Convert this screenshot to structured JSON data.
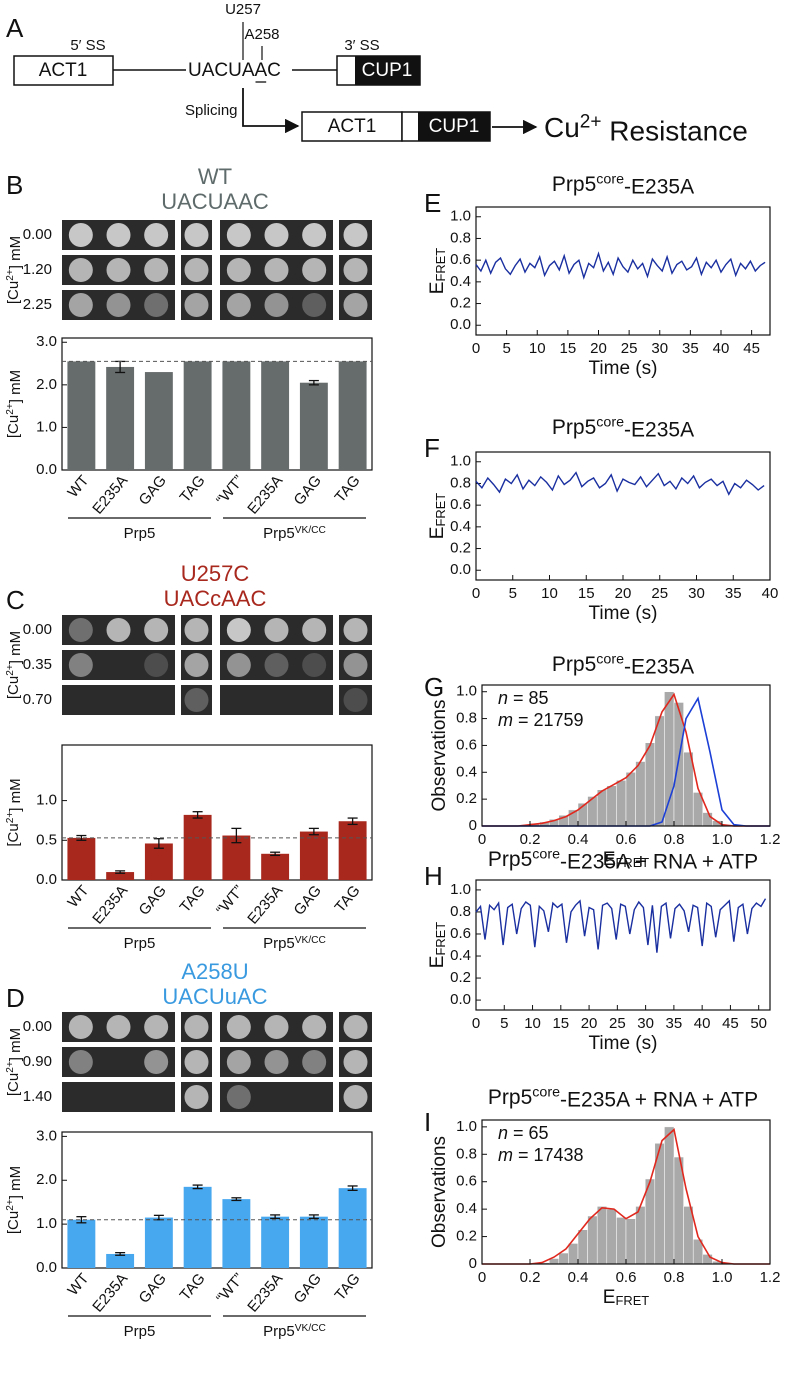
{
  "diagram": {
    "panel": "A",
    "exon1": "ACT1",
    "ss5": "5′ SS",
    "branch": "UACUAAC",
    "u257": "U257",
    "a258": "A258",
    "ss3": "3′ SS",
    "reporter": "CUP1",
    "splicing": "Splicing",
    "product1": "ACT1",
    "product2": "CUP1",
    "result": {
      "base": "Cu",
      "sup": "2+",
      "rest": " Resistance"
    }
  },
  "chart_data": [
    {
      "type": "bar",
      "panel": "B",
      "title": "WT",
      "subtitle": "UACUAAC",
      "title_color": "#5f6b6b",
      "color": "#666b6b",
      "concentrations": [
        "0.00",
        "1.20",
        "2.25"
      ],
      "photo_ylabel": {
        "base": "[Cu",
        "sup": "2+",
        "rest": "] mM"
      },
      "ylabel": {
        "base": "[Cu",
        "sup": "2+",
        "rest": "] mM"
      },
      "categories": [
        "WT",
        "E235A",
        "GAG",
        "TAG",
        "“WT”",
        "E235A",
        "GAG",
        "TAG"
      ],
      "values": [
        2.55,
        2.42,
        2.3,
        2.55,
        2.55,
        2.55,
        2.05,
        2.55
      ],
      "errors": [
        null,
        0.13,
        null,
        null,
        null,
        null,
        0.05,
        null
      ],
      "refline": 2.55,
      "ylim": [
        0,
        3.1
      ],
      "yticks": [
        {
          "value": 0,
          "label": "0.0"
        },
        {
          "value": 1,
          "label": "1.0"
        },
        {
          "value": 2,
          "label": "2.0"
        },
        {
          "value": 3,
          "label": "3.0"
        }
      ],
      "groups": [
        {
          "base": "Prp5"
        },
        {
          "base": "Prp5",
          "sup": "VK/CC"
        }
      ]
    },
    {
      "type": "bar",
      "panel": "C",
      "title": "U257C",
      "subtitle": "UACcAAC",
      "title_color": "#a8281e",
      "color": "#a8281e",
      "concentrations": [
        "0.00",
        "0.35",
        "0.70"
      ],
      "photo_ylabel": {
        "base": "[Cu",
        "sup": "2+",
        "rest": "] mM"
      },
      "ylabel": {
        "base": "[Cu",
        "sup": "2+",
        "rest": "] mM"
      },
      "categories": [
        "WT",
        "E235A",
        "GAG",
        "TAG",
        "“WT”",
        "E235A",
        "GAG",
        "TAG"
      ],
      "values": [
        0.53,
        0.1,
        0.46,
        0.82,
        0.56,
        0.33,
        0.61,
        0.74
      ],
      "errors": [
        0.03,
        0.015,
        0.06,
        0.04,
        0.09,
        0.02,
        0.04,
        0.04
      ],
      "refline": 0.53,
      "ylim": [
        0,
        1.7
      ],
      "yticks": [
        {
          "value": 0,
          "label": "0.0"
        },
        0.5,
        {
          "value": 1,
          "label": "1.0"
        }
      ],
      "groups": [
        {
          "base": "Prp5"
        },
        {
          "base": "Prp5",
          "sup": "VK/CC"
        }
      ]
    },
    {
      "type": "bar",
      "panel": "D",
      "title": "A258U",
      "subtitle": "UACUuAC",
      "title_color": "#3a9ae0",
      "color": "#47a7ef",
      "concentrations": [
        "0.00",
        "0.90",
        "1.40"
      ],
      "photo_ylabel": {
        "base": "[Cu",
        "sup": "2+",
        "rest": "] mM"
      },
      "ylabel": {
        "base": "[Cu",
        "sup": "2+",
        "rest": "] mM"
      },
      "categories": [
        "WT",
        "E235A",
        "GAG",
        "TAG",
        "“WT”",
        "E235A",
        "GAG",
        "TAG"
      ],
      "values": [
        1.1,
        0.32,
        1.15,
        1.85,
        1.57,
        1.17,
        1.17,
        1.82
      ],
      "errors": [
        0.07,
        0.03,
        0.05,
        0.04,
        0.03,
        0.04,
        0.04,
        0.05
      ],
      "refline": 1.1,
      "ylim": [
        0,
        3.1
      ],
      "yticks": [
        {
          "value": 0,
          "label": "0.0"
        },
        {
          "value": 1,
          "label": "1.0"
        },
        {
          "value": 2,
          "label": "2.0"
        },
        {
          "value": 3,
          "label": "3.0"
        }
      ],
      "groups": [
        {
          "base": "Prp5"
        },
        {
          "base": "Prp5",
          "sup": "VK/CC"
        }
      ]
    },
    {
      "type": "line",
      "panel": "E",
      "title": {
        "base": "Prp5",
        "sup": "core",
        "rest": "-E235A"
      },
      "xlabel": "Time (s)",
      "ylabel": {
        "base": "E",
        "sub": "FRET"
      },
      "color": "#1a2fa0",
      "xlim": [
        0,
        48
      ],
      "xticks": [
        0,
        5,
        10,
        15,
        20,
        25,
        30,
        35,
        40,
        45
      ],
      "ylim": [
        -0.09,
        1.09
      ],
      "yticks": [
        {
          "value": 0,
          "label": "0.0"
        },
        0.2,
        0.4,
        0.6,
        0.8,
        {
          "value": 1,
          "label": "1.0"
        }
      ],
      "x": [
        0,
        0.8,
        1.6,
        2.4,
        3.2,
        4,
        4.8,
        5.6,
        6.4,
        7.2,
        8,
        8.8,
        9.6,
        10.4,
        11.2,
        12,
        12.8,
        13.6,
        14.4,
        15.2,
        16,
        16.8,
        17.6,
        18.4,
        19.2,
        20,
        20.8,
        21.6,
        22.4,
        23.2,
        24,
        24.8,
        25.6,
        26.4,
        27.2,
        28,
        28.8,
        29.6,
        30.4,
        31.2,
        32,
        32.8,
        33.6,
        34.4,
        35.2,
        36,
        36.8,
        37.6,
        38.4,
        39.2,
        40,
        40.8,
        41.6,
        42.4,
        43.2,
        44,
        44.8,
        45.6,
        46.4,
        47.2
      ],
      "values": [
        0.56,
        0.5,
        0.6,
        0.48,
        0.58,
        0.62,
        0.52,
        0.47,
        0.55,
        0.61,
        0.49,
        0.57,
        0.53,
        0.63,
        0.46,
        0.55,
        0.59,
        0.51,
        0.64,
        0.48,
        0.56,
        0.6,
        0.44,
        0.57,
        0.53,
        0.66,
        0.5,
        0.58,
        0.47,
        0.62,
        0.54,
        0.49,
        0.6,
        0.52,
        0.57,
        0.45,
        0.61,
        0.55,
        0.5,
        0.63,
        0.48,
        0.56,
        0.59,
        0.51,
        0.54,
        0.62,
        0.47,
        0.58,
        0.53,
        0.6,
        0.49,
        0.56,
        0.61,
        0.46,
        0.57,
        0.52,
        0.59,
        0.5,
        0.55,
        0.58
      ]
    },
    {
      "type": "line",
      "panel": "F",
      "title": {
        "base": "Prp5",
        "sup": "core",
        "rest": "-E235A"
      },
      "xlabel": "Time (s)",
      "ylabel": {
        "base": "E",
        "sub": "FRET"
      },
      "color": "#1a2fa0",
      "xlim": [
        0,
        40
      ],
      "xticks": [
        0,
        5,
        10,
        15,
        20,
        25,
        30,
        35,
        40
      ],
      "ylim": [
        -0.09,
        1.09
      ],
      "yticks": [
        {
          "value": 0,
          "label": "0.0"
        },
        0.2,
        0.4,
        0.6,
        0.8,
        {
          "value": 1,
          "label": "1.0"
        }
      ],
      "x": [
        0,
        0.8,
        1.6,
        2.4,
        3.2,
        4,
        4.8,
        5.6,
        6.4,
        7.2,
        8,
        8.8,
        9.6,
        10.4,
        11.2,
        12,
        12.8,
        13.6,
        14.4,
        15.2,
        16,
        16.8,
        17.6,
        18.4,
        19.2,
        20,
        20.8,
        21.6,
        22.4,
        23.2,
        24,
        24.8,
        25.6,
        26.4,
        27.2,
        28,
        28.8,
        29.6,
        30.4,
        31.2,
        32,
        32.8,
        33.6,
        34.4,
        35.2,
        36,
        36.8,
        37.6,
        38.4,
        39.2
      ],
      "values": [
        0.82,
        0.76,
        0.85,
        0.79,
        0.72,
        0.84,
        0.8,
        0.88,
        0.75,
        0.83,
        0.78,
        0.86,
        0.81,
        0.74,
        0.87,
        0.79,
        0.83,
        0.9,
        0.77,
        0.82,
        0.85,
        0.76,
        0.8,
        0.88,
        0.73,
        0.84,
        0.81,
        0.79,
        0.86,
        0.77,
        0.83,
        0.89,
        0.78,
        0.82,
        0.75,
        0.85,
        0.8,
        0.87,
        0.76,
        0.81,
        0.84,
        0.78,
        0.82,
        0.7,
        0.8,
        0.76,
        0.83,
        0.79,
        0.74,
        0.78
      ]
    },
    {
      "type": "histogram",
      "panel": "G",
      "title": {
        "base": "Prp5",
        "sup": "core",
        "rest": "-E235A"
      },
      "xlabel": {
        "base": "E",
        "sub": "FRET"
      },
      "ylabel": "Observations",
      "bar_color": "#a9a9a9",
      "annotations": [
        {
          "var": "n",
          "text": " = 85"
        },
        {
          "var": "m",
          "text": " = 21759"
        }
      ],
      "xlim": [
        0,
        1.2
      ],
      "xticks": [
        0,
        0.2,
        0.4,
        0.6,
        0.8,
        {
          "value": 1,
          "label": "1.0"
        },
        1.2
      ],
      "ylim": [
        0,
        1.05
      ],
      "yticks": [
        0,
        0.2,
        0.4,
        0.6,
        0.8,
        {
          "value": 1,
          "label": "1.0"
        }
      ],
      "bins": [
        0,
        0.04,
        0.08,
        0.12,
        0.16,
        0.2,
        0.24,
        0.28,
        0.32,
        0.36,
        0.4,
        0.44,
        0.48,
        0.52,
        0.56,
        0.6,
        0.64,
        0.68,
        0.72,
        0.76,
        0.8,
        0.84,
        0.88,
        0.92,
        0.96,
        1,
        1.04,
        1.08,
        1.12,
        1.16,
        1.2
      ],
      "counts": [
        0,
        0,
        0,
        0,
        0.01,
        0.02,
        0.03,
        0.05,
        0.08,
        0.12,
        0.17,
        0.22,
        0.27,
        0.3,
        0.34,
        0.4,
        0.48,
        0.62,
        0.82,
        1.0,
        0.92,
        0.55,
        0.25,
        0.1,
        0.04,
        0.01,
        0,
        0,
        0,
        0
      ],
      "series": [
        {
          "color": "#e0281e",
          "x": [
            0,
            0.05,
            0.1,
            0.15,
            0.2,
            0.25,
            0.3,
            0.35,
            0.4,
            0.45,
            0.5,
            0.55,
            0.6,
            0.65,
            0.7,
            0.75,
            0.8,
            0.85,
            0.9,
            0.95,
            1,
            1.05,
            1.1,
            1.15,
            1.2
          ],
          "values": [
            0,
            0,
            0,
            0,
            0.01,
            0.02,
            0.04,
            0.07,
            0.12,
            0.19,
            0.26,
            0.31,
            0.36,
            0.45,
            0.6,
            0.85,
            0.98,
            0.7,
            0.28,
            0.07,
            0.01,
            0,
            0,
            0,
            0
          ]
        },
        {
          "color": "#1c3fd6",
          "x": [
            0,
            0.05,
            0.1,
            0.15,
            0.2,
            0.25,
            0.3,
            0.35,
            0.4,
            0.45,
            0.5,
            0.55,
            0.6,
            0.65,
            0.7,
            0.75,
            0.8,
            0.85,
            0.9,
            0.95,
            1,
            1.05,
            1.1,
            1.15,
            1.2
          ],
          "values": [
            0,
            0,
            0,
            0,
            0,
            0,
            0,
            0,
            0,
            0,
            0,
            0,
            0,
            0,
            0,
            0.03,
            0.3,
            0.8,
            0.95,
            0.55,
            0.12,
            0.01,
            0,
            0,
            0
          ]
        }
      ]
    },
    {
      "type": "line",
      "panel": "H",
      "title": {
        "base": "Prp5",
        "sup": "core",
        "rest": "-E235A + RNA + ATP"
      },
      "xlabel": "Time (s)",
      "ylabel": {
        "base": "E",
        "sub": "FRET"
      },
      "color": "#1a2fa0",
      "xlim": [
        0,
        52
      ],
      "xticks": [
        0,
        5,
        10,
        15,
        20,
        25,
        30,
        35,
        40,
        45,
        50
      ],
      "ylim": [
        -0.09,
        1.09
      ],
      "yticks": [
        {
          "value": 0,
          "label": "0.0"
        },
        0.2,
        0.4,
        0.6,
        0.8,
        {
          "value": 1,
          "label": "1.0"
        }
      ],
      "x": [
        0,
        0.8,
        1.6,
        2.4,
        3.2,
        4,
        4.8,
        5.6,
        6.4,
        7.2,
        8,
        8.8,
        9.6,
        10.4,
        11.2,
        12,
        12.8,
        13.6,
        14.4,
        15.2,
        16,
        16.8,
        17.6,
        18.4,
        19.2,
        20,
        20.8,
        21.6,
        22.4,
        23.2,
        24,
        24.8,
        25.6,
        26.4,
        27.2,
        28,
        28.8,
        29.6,
        30.4,
        31.2,
        32,
        32.8,
        33.6,
        34.4,
        35.2,
        36,
        36.8,
        37.6,
        38.4,
        39.2,
        40,
        40.8,
        41.6,
        42.4,
        43.2,
        44,
        44.8,
        45.6,
        46.4,
        47.2,
        48,
        48.8,
        49.6,
        50.4,
        51.2
      ],
      "values": [
        0.8,
        0.85,
        0.55,
        0.86,
        0.82,
        0.88,
        0.5,
        0.84,
        0.87,
        0.6,
        0.83,
        0.89,
        0.86,
        0.48,
        0.85,
        0.81,
        0.62,
        0.88,
        0.84,
        0.87,
        0.52,
        0.8,
        0.86,
        0.9,
        0.58,
        0.84,
        0.82,
        0.46,
        0.86,
        0.88,
        0.83,
        0.55,
        0.87,
        0.85,
        0.6,
        0.82,
        0.89,
        0.84,
        0.5,
        0.86,
        0.43,
        0.85,
        0.88,
        0.56,
        0.83,
        0.87,
        0.81,
        0.62,
        0.86,
        0.84,
        0.49,
        0.88,
        0.85,
        0.57,
        0.82,
        0.86,
        0.9,
        0.53,
        0.84,
        0.87,
        0.6,
        0.83,
        0.88,
        0.85,
        0.92
      ]
    },
    {
      "type": "histogram",
      "panel": "I",
      "title": {
        "base": "Prp5",
        "sup": "core",
        "rest": "-E235A + RNA + ATP"
      },
      "xlabel": {
        "base": "E",
        "sub": "FRET"
      },
      "ylabel": "Observations",
      "bar_color": "#a9a9a9",
      "annotations": [
        {
          "var": "n",
          "text": " = 65"
        },
        {
          "var": "m",
          "text": " = 17438"
        }
      ],
      "xlim": [
        0,
        1.2
      ],
      "xticks": [
        0,
        0.2,
        0.4,
        0.6,
        0.8,
        {
          "value": 1,
          "label": "1.0"
        },
        1.2
      ],
      "ylim": [
        0,
        1.05
      ],
      "yticks": [
        0,
        0.2,
        0.4,
        0.6,
        0.8,
        {
          "value": 1,
          "label": "1.0"
        }
      ],
      "bins": [
        0,
        0.04,
        0.08,
        0.12,
        0.16,
        0.2,
        0.24,
        0.28,
        0.32,
        0.36,
        0.4,
        0.44,
        0.48,
        0.52,
        0.56,
        0.6,
        0.64,
        0.68,
        0.72,
        0.76,
        0.8,
        0.84,
        0.88,
        0.92,
        0.96,
        1,
        1.04,
        1.08,
        1.12,
        1.16,
        1.2
      ],
      "counts": [
        0,
        0,
        0,
        0,
        0,
        0,
        0.01,
        0.04,
        0.08,
        0.15,
        0.25,
        0.35,
        0.42,
        0.4,
        0.34,
        0.33,
        0.42,
        0.62,
        0.88,
        1.0,
        0.78,
        0.42,
        0.18,
        0.07,
        0.02,
        0,
        0,
        0,
        0,
        0
      ],
      "series": [
        {
          "color": "#e0281e",
          "x": [
            0,
            0.05,
            0.1,
            0.15,
            0.2,
            0.25,
            0.3,
            0.35,
            0.4,
            0.45,
            0.5,
            0.55,
            0.6,
            0.65,
            0.7,
            0.75,
            0.8,
            0.85,
            0.9,
            0.95,
            1,
            1.05,
            1.1,
            1.15,
            1.2
          ],
          "values": [
            0,
            0,
            0,
            0,
            0,
            0.01,
            0.05,
            0.11,
            0.22,
            0.33,
            0.41,
            0.4,
            0.33,
            0.38,
            0.6,
            0.9,
            0.98,
            0.55,
            0.2,
            0.05,
            0.01,
            0,
            0,
            0,
            0
          ]
        }
      ]
    }
  ]
}
